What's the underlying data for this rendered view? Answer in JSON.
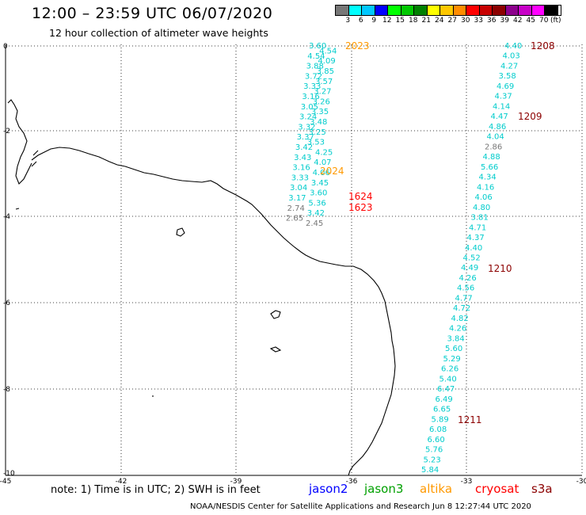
{
  "header": {
    "title": "12:00 – 23:59 UTC 06/07/2020",
    "subtitle": "12 hour collection of altimeter wave heights"
  },
  "legend": {
    "colors": [
      "#777777",
      "#00ffff",
      "#00c8ff",
      "#0000ff",
      "#00ff00",
      "#00c800",
      "#008000",
      "#ffff00",
      "#ffc800",
      "#ff8c00",
      "#ff0000",
      "#c80000",
      "#8c0000",
      "#8c008c",
      "#c800c8",
      "#ff00ff",
      "#000000"
    ],
    "labels": [
      "3",
      "6",
      "9",
      "12",
      "15",
      "18",
      "21",
      "24",
      "27",
      "30",
      "33",
      "36",
      "39",
      "42",
      "45",
      "70"
    ],
    "unit": "(ft)"
  },
  "axes": {
    "x_ticks": [
      "-45",
      "-42",
      "-39",
      "-36",
      "-33",
      "-30"
    ],
    "y_ticks": [
      "0",
      "-2",
      "-4",
      "-6",
      "-8",
      "-10"
    ]
  },
  "track_west_upper": {
    "values": [
      "3.60",
      "4.54",
      "4.54",
      "4.09",
      "3.88",
      "3.85",
      "3.72",
      "3.57",
      "3.33",
      "3.27",
      "3.16",
      "3.26",
      "3.05",
      "3.35",
      "3.24",
      "3.48",
      "3.32",
      "3.25",
      "3.37",
      "3.53",
      "3.42",
      "4.25",
      "3.43",
      "4.07",
      "3.16",
      "4.06",
      "3.33",
      "3.45",
      "3.04",
      "3.60",
      "3.17",
      "5.36",
      "2.74",
      "3.42",
      "2.65",
      "2.45"
    ]
  },
  "track_east": {
    "values": [
      "4.40",
      "4.03",
      "4.27",
      "3.58",
      "4.69",
      "4.37",
      "4.14",
      "4.47",
      "4.86",
      "4.04",
      "2.86",
      "4.88",
      "5.66",
      "4.34",
      "4.16",
      "4.06",
      "4.80",
      "3.81",
      "4.71",
      "4.37",
      "4.40",
      "4.52",
      "4.49",
      "4.26",
      "4.56",
      "4.77",
      "4.72",
      "4.82",
      "4.26",
      "3.84",
      "5.60",
      "5.29",
      "6.26",
      "5.40",
      "6.47",
      "6.49",
      "6.65",
      "5.89",
      "6.08",
      "6.60",
      "5.76",
      "5.23",
      "5.84"
    ]
  },
  "time_labels": [
    {
      "text": "2023",
      "color": "#ff9900"
    },
    {
      "text": "2024",
      "color": "#ff9900"
    },
    {
      "text": "1624",
      "color": "#ff0000"
    },
    {
      "text": "1623",
      "color": "#ff0000"
    },
    {
      "text": "1208",
      "color": "#8c0000"
    },
    {
      "text": "1209",
      "color": "#8c0000"
    },
    {
      "text": "1210",
      "color": "#8c0000"
    },
    {
      "text": "1211",
      "color": "#8c0000"
    }
  ],
  "footer": {
    "note": "note:  1) Time is in UTC;  2) SWH is in feet",
    "satellites": [
      {
        "name": "jason2",
        "color": "#0000ff"
      },
      {
        "name": "jason3",
        "color": "#00a000"
      },
      {
        "name": "altika",
        "color": "#ff9900"
      },
      {
        "name": "cryosat",
        "color": "#ff0000"
      },
      {
        "name": "s3a",
        "color": "#8c0000"
      }
    ],
    "credit": "NOAA/NESDIS Center for Satellite Applications and Research     Jun  8 12:27:44 UTC 2020"
  }
}
